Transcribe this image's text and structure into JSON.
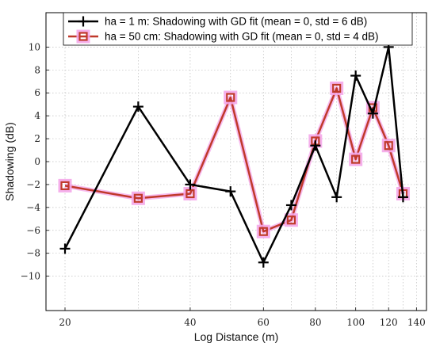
{
  "chart_data": {
    "type": "line",
    "xscale": "log",
    "xlabel": "Log Distance (m)",
    "ylabel": "Shadowing (dB)",
    "xlim": [
      18,
      148
    ],
    "ylim": [
      -13,
      13
    ],
    "x_tick_labels": [
      "20",
      "40",
      "60",
      "80",
      "100",
      "120",
      "140"
    ],
    "y_ticks": [
      -10,
      -8,
      -6,
      -4,
      -2,
      0,
      2,
      4,
      6,
      8,
      10
    ],
    "grid": true,
    "legend_position": "top",
    "series": [
      {
        "name": "ha = 1 m: Shadowing with GD fit (mean = 0, std = 6 dB)",
        "color": "#000000",
        "marker": "plus",
        "x": [
          20,
          30,
          40,
          50,
          60,
          70,
          80,
          90,
          100,
          110,
          120,
          130
        ],
        "y": [
          -7.6,
          4.8,
          -2.0,
          -2.6,
          -8.8,
          -3.8,
          1.4,
          -3.1,
          7.5,
          4.2,
          10.0,
          -3.1
        ]
      },
      {
        "name": "ha = 50 cm: Shadowing with GD fit (mean = 0, std = 4 dB)",
        "color": "#c0392b",
        "marker": "square",
        "x": [
          20,
          30,
          40,
          50,
          60,
          70,
          80,
          90,
          100,
          110,
          120,
          130
        ],
        "y": [
          -2.1,
          -3.2,
          -2.8,
          5.6,
          -6.1,
          -5.1,
          1.8,
          6.4,
          0.2,
          4.7,
          1.4,
          -2.8
        ]
      }
    ]
  }
}
